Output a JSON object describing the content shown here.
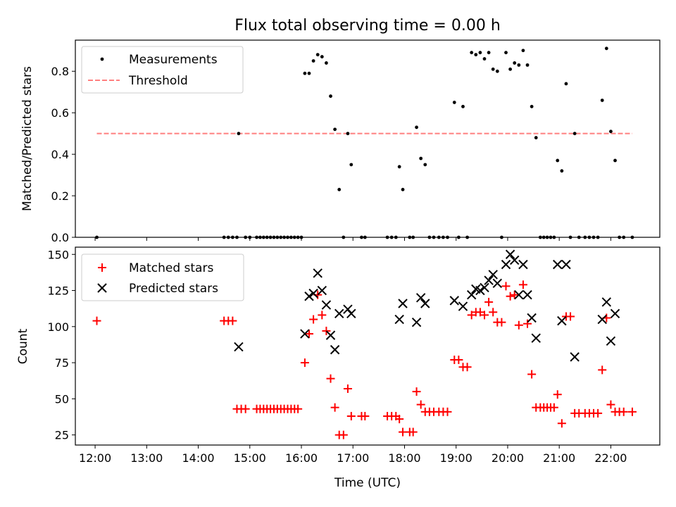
{
  "chart_data": [
    {
      "type": "scatter",
      "title": "Flux total observing time = 0.00 h",
      "ylabel": "Matched/Predicted stars",
      "xlabel": "",
      "xlim": [
        "11:37",
        "22:57"
      ],
      "ylim": [
        0,
        0.95
      ],
      "x_ticks": [
        "12:00",
        "13:00",
        "14:00",
        "15:00",
        "16:00",
        "17:00",
        "18:00",
        "19:00",
        "20:00",
        "21:00",
        "22:00"
      ],
      "y_ticks": [
        "0.0",
        "0.2",
        "0.4",
        "0.6",
        "0.8"
      ],
      "legend_position": "top-left",
      "grid": false,
      "series": [
        {
          "name": "Measurements",
          "marker": "dot",
          "color": "#000000",
          "points": [
            [
              "12:02",
              0
            ],
            [
              "14:30",
              0
            ],
            [
              "14:35",
              0
            ],
            [
              "14:40",
              0
            ],
            [
              "14:45",
              0
            ],
            [
              "14:47",
              0.5
            ],
            [
              "14:55",
              0
            ],
            [
              "15:00",
              0
            ],
            [
              "15:08",
              0
            ],
            [
              "15:12",
              0
            ],
            [
              "15:16",
              0
            ],
            [
              "15:20",
              0
            ],
            [
              "15:24",
              0
            ],
            [
              "15:28",
              0
            ],
            [
              "15:32",
              0
            ],
            [
              "15:36",
              0
            ],
            [
              "15:40",
              0
            ],
            [
              "15:44",
              0
            ],
            [
              "15:48",
              0
            ],
            [
              "15:52",
              0
            ],
            [
              "15:56",
              0
            ],
            [
              "16:00",
              0
            ],
            [
              "16:04",
              0.79
            ],
            [
              "16:09",
              0.79
            ],
            [
              "16:14",
              0.85
            ],
            [
              "16:19",
              0.88
            ],
            [
              "16:24",
              0.87
            ],
            [
              "16:29",
              0.84
            ],
            [
              "16:34",
              0.68
            ],
            [
              "16:39",
              0.52
            ],
            [
              "16:44",
              0.23
            ],
            [
              "16:49",
              0
            ],
            [
              "16:54",
              0.5
            ],
            [
              "16:58",
              0.35
            ],
            [
              "17:10",
              0
            ],
            [
              "17:14",
              0
            ],
            [
              "17:40",
              0
            ],
            [
              "17:45",
              0
            ],
            [
              "17:50",
              0
            ],
            [
              "17:54",
              0.34
            ],
            [
              "17:58",
              0.23
            ],
            [
              "18:06",
              0
            ],
            [
              "18:10",
              0
            ],
            [
              "18:14",
              0.53
            ],
            [
              "18:19",
              0.38
            ],
            [
              "18:24",
              0.35
            ],
            [
              "18:29",
              0
            ],
            [
              "18:34",
              0
            ],
            [
              "18:40",
              0
            ],
            [
              "18:45",
              0
            ],
            [
              "18:50",
              0
            ],
            [
              "18:58",
              0.65
            ],
            [
              "19:03",
              0
            ],
            [
              "19:08",
              0.63
            ],
            [
              "19:13",
              0
            ],
            [
              "19:18",
              0.89
            ],
            [
              "19:23",
              0.88
            ],
            [
              "19:28",
              0.89
            ],
            [
              "19:33",
              0.86
            ],
            [
              "19:38",
              0.89
            ],
            [
              "19:43",
              0.81
            ],
            [
              "19:48",
              0.8
            ],
            [
              "19:53",
              0
            ],
            [
              "19:58",
              0.89
            ],
            [
              "20:03",
              0.81
            ],
            [
              "20:08",
              0.84
            ],
            [
              "20:13",
              0.83
            ],
            [
              "20:18",
              0.9
            ],
            [
              "20:23",
              0.83
            ],
            [
              "20:28",
              0.63
            ],
            [
              "20:33",
              0.48
            ],
            [
              "20:38",
              0
            ],
            [
              "20:42",
              0
            ],
            [
              "20:46",
              0
            ],
            [
              "20:50",
              0
            ],
            [
              "20:54",
              0
            ],
            [
              "20:58",
              0.37
            ],
            [
              "21:03",
              0.32
            ],
            [
              "21:08",
              0.74
            ],
            [
              "21:13",
              0
            ],
            [
              "21:18",
              0.5
            ],
            [
              "21:23",
              0
            ],
            [
              "21:30",
              0
            ],
            [
              "21:35",
              0
            ],
            [
              "21:40",
              0
            ],
            [
              "21:45",
              0
            ],
            [
              "21:50",
              0.66
            ],
            [
              "21:55",
              0.91
            ],
            [
              "22:00",
              0.51
            ],
            [
              "22:05",
              0.37
            ],
            [
              "22:10",
              0
            ],
            [
              "22:15",
              0
            ],
            [
              "22:25",
              0
            ]
          ]
        },
        {
          "name": "Threshold",
          "marker": "dashed-line",
          "color": "#ff7f7f",
          "points": [
            [
              "12:02",
              0.5
            ],
            [
              "22:25",
              0.5
            ]
          ]
        }
      ]
    },
    {
      "type": "scatter",
      "title": "",
      "ylabel": "Count",
      "xlabel": "Time (UTC)",
      "xlim": [
        "11:37",
        "22:57"
      ],
      "ylim": [
        18,
        155
      ],
      "x_ticks": [
        "12:00",
        "13:00",
        "14:00",
        "15:00",
        "16:00",
        "17:00",
        "18:00",
        "19:00",
        "20:00",
        "21:00",
        "22:00"
      ],
      "y_ticks": [
        "25",
        "50",
        "75",
        "100",
        "125",
        "150"
      ],
      "legend_position": "top-left",
      "grid": false,
      "series": [
        {
          "name": "Matched stars",
          "marker": "plus",
          "color": "#ff0000",
          "points": [
            [
              "12:02",
              104
            ],
            [
              "14:30",
              104
            ],
            [
              "14:35",
              104
            ],
            [
              "14:40",
              104
            ],
            [
              "14:45",
              43
            ],
            [
              "14:50",
              43
            ],
            [
              "14:55",
              43
            ],
            [
              "15:08",
              43
            ],
            [
              "15:12",
              43
            ],
            [
              "15:16",
              43
            ],
            [
              "15:20",
              43
            ],
            [
              "15:24",
              43
            ],
            [
              "15:28",
              43
            ],
            [
              "15:32",
              43
            ],
            [
              "15:36",
              43
            ],
            [
              "15:40",
              43
            ],
            [
              "15:44",
              43
            ],
            [
              "15:48",
              43
            ],
            [
              "15:52",
              43
            ],
            [
              "15:56",
              43
            ],
            [
              "16:04",
              75
            ],
            [
              "16:09",
              95
            ],
            [
              "16:14",
              105
            ],
            [
              "16:19",
              122
            ],
            [
              "16:24",
              108
            ],
            [
              "16:29",
              97
            ],
            [
              "16:34",
              64
            ],
            [
              "16:39",
              44
            ],
            [
              "16:44",
              25
            ],
            [
              "16:49",
              25
            ],
            [
              "16:54",
              57
            ],
            [
              "16:58",
              38
            ],
            [
              "17:10",
              38
            ],
            [
              "17:14",
              38
            ],
            [
              "17:40",
              38
            ],
            [
              "17:45",
              38
            ],
            [
              "17:50",
              38
            ],
            [
              "17:54",
              36
            ],
            [
              "17:58",
              27
            ],
            [
              "18:06",
              27
            ],
            [
              "18:10",
              27
            ],
            [
              "18:14",
              55
            ],
            [
              "18:19",
              46
            ],
            [
              "18:24",
              41
            ],
            [
              "18:29",
              41
            ],
            [
              "18:34",
              41
            ],
            [
              "18:40",
              41
            ],
            [
              "18:45",
              41
            ],
            [
              "18:50",
              41
            ],
            [
              "18:58",
              77
            ],
            [
              "19:03",
              77
            ],
            [
              "19:08",
              72
            ],
            [
              "19:13",
              72
            ],
            [
              "19:18",
              108
            ],
            [
              "19:23",
              110
            ],
            [
              "19:28",
              110
            ],
            [
              "19:33",
              108
            ],
            [
              "19:38",
              117
            ],
            [
              "19:43",
              110
            ],
            [
              "19:48",
              103
            ],
            [
              "19:53",
              103
            ],
            [
              "19:58",
              128
            ],
            [
              "20:03",
              121
            ],
            [
              "20:08",
              122
            ],
            [
              "20:13",
              101
            ],
            [
              "20:18",
              129
            ],
            [
              "20:23",
              102
            ],
            [
              "20:28",
              67
            ],
            [
              "20:33",
              44
            ],
            [
              "20:38",
              44
            ],
            [
              "20:42",
              44
            ],
            [
              "20:46",
              44
            ],
            [
              "20:50",
              44
            ],
            [
              "20:54",
              44
            ],
            [
              "20:58",
              53
            ],
            [
              "21:03",
              33
            ],
            [
              "21:08",
              107
            ],
            [
              "21:13",
              107
            ],
            [
              "21:18",
              40
            ],
            [
              "21:23",
              40
            ],
            [
              "21:30",
              40
            ],
            [
              "21:35",
              40
            ],
            [
              "21:40",
              40
            ],
            [
              "21:45",
              40
            ],
            [
              "21:50",
              70
            ],
            [
              "21:55",
              106
            ],
            [
              "22:00",
              46
            ],
            [
              "22:05",
              41
            ],
            [
              "22:10",
              41
            ],
            [
              "22:15",
              41
            ],
            [
              "22:25",
              41
            ]
          ]
        },
        {
          "name": "Predicted stars",
          "marker": "x",
          "color": "#000000",
          "points": [
            [
              "14:47",
              86
            ],
            [
              "16:04",
              95
            ],
            [
              "16:09",
              121
            ],
            [
              "16:14",
              123
            ],
            [
              "16:19",
              137
            ],
            [
              "16:24",
              125
            ],
            [
              "16:29",
              115
            ],
            [
              "16:34",
              94
            ],
            [
              "16:39",
              84
            ],
            [
              "16:44",
              109
            ],
            [
              "16:54",
              112
            ],
            [
              "16:58",
              109
            ],
            [
              "17:54",
              105
            ],
            [
              "17:58",
              116
            ],
            [
              "18:14",
              103
            ],
            [
              "18:19",
              120
            ],
            [
              "18:24",
              116
            ],
            [
              "18:58",
              118
            ],
            [
              "19:08",
              114
            ],
            [
              "19:18",
              122
            ],
            [
              "19:23",
              126
            ],
            [
              "19:28",
              125
            ],
            [
              "19:33",
              127
            ],
            [
              "19:38",
              132
            ],
            [
              "19:43",
              136
            ],
            [
              "19:48",
              130
            ],
            [
              "19:58",
              143
            ],
            [
              "20:03",
              150
            ],
            [
              "20:08",
              146
            ],
            [
              "20:13",
              122
            ],
            [
              "20:18",
              143
            ],
            [
              "20:23",
              122
            ],
            [
              "20:28",
              106
            ],
            [
              "20:33",
              92
            ],
            [
              "20:58",
              143
            ],
            [
              "21:03",
              104
            ],
            [
              "21:08",
              143
            ],
            [
              "21:18",
              79
            ],
            [
              "21:50",
              105
            ],
            [
              "21:55",
              117
            ],
            [
              "22:00",
              90
            ],
            [
              "22:05",
              109
            ]
          ]
        }
      ]
    }
  ]
}
